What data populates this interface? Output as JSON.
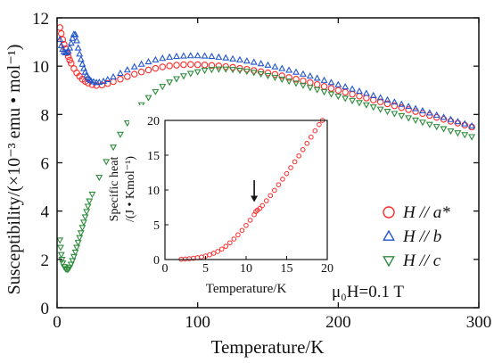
{
  "chart_data": [
    {
      "type": "scatter",
      "xlabel": "Temperature/K",
      "ylabel": "Susceptibility/(×10⁻³ emu • mol⁻¹)",
      "xlim": [
        0,
        300
      ],
      "ylim": [
        0,
        12
      ],
      "xticks": [
        "0",
        "100",
        "200",
        "300"
      ],
      "yticks": [
        "0",
        "2",
        "4",
        "6",
        "8",
        "10",
        "12"
      ],
      "legend_position": "right",
      "annotation": "μ₀H=0.1 T",
      "series": [
        {
          "name": "H // a*",
          "marker": "circle",
          "color": "#ff2a2a",
          "points": [
            [
              2,
              11.6
            ],
            [
              3,
              11.35
            ],
            [
              4,
              11.1
            ],
            [
              5,
              10.9
            ],
            [
              6,
              10.72
            ],
            [
              7,
              10.55
            ],
            [
              8,
              10.4
            ],
            [
              9,
              10.25
            ],
            [
              10,
              10.12
            ],
            [
              12,
              9.9
            ],
            [
              14,
              9.72
            ],
            [
              16,
              9.58
            ],
            [
              18,
              9.46
            ],
            [
              20,
              9.37
            ],
            [
              22,
              9.3
            ],
            [
              25,
              9.23
            ],
            [
              28,
              9.2
            ],
            [
              32,
              9.22
            ],
            [
              36,
              9.28
            ],
            [
              40,
              9.36
            ],
            [
              45,
              9.46
            ],
            [
              50,
              9.57
            ],
            [
              55,
              9.67
            ],
            [
              60,
              9.76
            ],
            [
              65,
              9.84
            ],
            [
              70,
              9.91
            ],
            [
              75,
              9.97
            ],
            [
              80,
              10.01
            ],
            [
              85,
              10.04
            ],
            [
              90,
              10.06
            ],
            [
              95,
              10.07
            ],
            [
              100,
              10.06
            ],
            [
              105,
              10.05
            ],
            [
              110,
              10.03
            ],
            [
              115,
              10.01
            ],
            [
              120,
              9.98
            ],
            [
              125,
              9.95
            ],
            [
              130,
              9.91
            ],
            [
              135,
              9.87
            ],
            [
              140,
              9.82
            ],
            [
              145,
              9.77
            ],
            [
              150,
              9.72
            ],
            [
              155,
              9.66
            ],
            [
              160,
              9.6
            ],
            [
              165,
              9.53
            ],
            [
              170,
              9.46
            ],
            [
              175,
              9.39
            ],
            [
              180,
              9.32
            ],
            [
              185,
              9.24
            ],
            [
              190,
              9.16
            ],
            [
              195,
              9.08
            ],
            [
              200,
              9.0
            ],
            [
              205,
              8.92
            ],
            [
              210,
              8.84
            ],
            [
              215,
              8.76
            ],
            [
              220,
              8.68
            ],
            [
              225,
              8.6
            ],
            [
              230,
              8.52
            ],
            [
              235,
              8.44
            ],
            [
              240,
              8.36
            ],
            [
              245,
              8.28
            ],
            [
              250,
              8.2
            ],
            [
              255,
              8.12
            ],
            [
              260,
              8.04
            ],
            [
              265,
              7.96
            ],
            [
              270,
              7.88
            ],
            [
              275,
              7.8
            ],
            [
              280,
              7.72
            ],
            [
              285,
              7.64
            ],
            [
              290,
              7.56
            ],
            [
              295,
              7.48
            ]
          ]
        },
        {
          "name": "H // b",
          "marker": "triangle-up",
          "color": "#2255cc",
          "points": [
            [
              2,
              11.1
            ],
            [
              3,
              10.85
            ],
            [
              4,
              10.7
            ],
            [
              5,
              10.6
            ],
            [
              6,
              10.55
            ],
            [
              7,
              10.55
            ],
            [
              8,
              10.62
            ],
            [
              9,
              10.75
            ],
            [
              10,
              10.95
            ],
            [
              11,
              11.15
            ],
            [
              12,
              11.32
            ],
            [
              13,
              11.3
            ],
            [
              14,
              11.05
            ],
            [
              15,
              10.75
            ],
            [
              16,
              10.5
            ],
            [
              17,
              10.28
            ],
            [
              18,
              10.08
            ],
            [
              19,
              9.9
            ],
            [
              20,
              9.75
            ],
            [
              21,
              9.62
            ],
            [
              22,
              9.52
            ],
            [
              23,
              9.45
            ],
            [
              24,
              9.4
            ],
            [
              26,
              9.35
            ],
            [
              28,
              9.32
            ],
            [
              30,
              9.33
            ],
            [
              33,
              9.37
            ],
            [
              36,
              9.44
            ],
            [
              40,
              9.55
            ],
            [
              45,
              9.7
            ],
            [
              50,
              9.84
            ],
            [
              55,
              9.97
            ],
            [
              60,
              10.08
            ],
            [
              65,
              10.18
            ],
            [
              70,
              10.26
            ],
            [
              75,
              10.32
            ],
            [
              80,
              10.37
            ],
            [
              85,
              10.4
            ],
            [
              90,
              10.42
            ],
            [
              95,
              10.43
            ],
            [
              100,
              10.43
            ],
            [
              105,
              10.42
            ],
            [
              110,
              10.4
            ],
            [
              115,
              10.37
            ],
            [
              120,
              10.34
            ],
            [
              125,
              10.3
            ],
            [
              130,
              10.26
            ],
            [
              135,
              10.21
            ],
            [
              140,
              10.16
            ],
            [
              145,
              10.1
            ],
            [
              150,
              10.04
            ],
            [
              155,
              9.97
            ],
            [
              160,
              9.9
            ],
            [
              165,
              9.83
            ],
            [
              170,
              9.75
            ],
            [
              175,
              9.67
            ],
            [
              180,
              9.59
            ],
            [
              185,
              9.5
            ],
            [
              190,
              9.41
            ],
            [
              195,
              9.32
            ],
            [
              200,
              9.23
            ],
            [
              205,
              9.14
            ],
            [
              210,
              9.05
            ],
            [
              215,
              8.96
            ],
            [
              220,
              8.87
            ],
            [
              225,
              8.78
            ],
            [
              230,
              8.69
            ],
            [
              235,
              8.6
            ],
            [
              240,
              8.51
            ],
            [
              245,
              8.42
            ],
            [
              250,
              8.33
            ],
            [
              255,
              8.24
            ],
            [
              260,
              8.15
            ],
            [
              265,
              8.06
            ],
            [
              270,
              7.97
            ],
            [
              275,
              7.88
            ],
            [
              280,
              7.79
            ],
            [
              285,
              7.7
            ],
            [
              290,
              7.61
            ],
            [
              295,
              7.52
            ]
          ]
        },
        {
          "name": "H // c",
          "marker": "triangle-down",
          "color": "#2e8b3c",
          "points": [
            [
              2,
              2.8
            ],
            [
              2.5,
              2.5
            ],
            [
              3,
              2.2
            ],
            [
              3.5,
              2.0
            ],
            [
              4,
              1.85
            ],
            [
              5,
              1.7
            ],
            [
              6,
              1.62
            ],
            [
              7,
              1.58
            ],
            [
              8,
              1.6
            ],
            [
              9,
              1.68
            ],
            [
              10,
              1.8
            ],
            [
              11,
              1.95
            ],
            [
              12,
              2.12
            ],
            [
              13,
              2.3
            ],
            [
              14,
              2.5
            ],
            [
              15,
              2.7
            ],
            [
              16,
              2.9
            ],
            [
              17,
              3.1
            ],
            [
              18,
              3.32
            ],
            [
              19,
              3.54
            ],
            [
              20,
              3.76
            ],
            [
              21,
              3.98
            ],
            [
              22,
              4.2
            ],
            [
              23,
              4.42
            ],
            [
              25,
              4.7
            ],
            [
              30,
              5.4
            ],
            [
              35,
              6.05
            ],
            [
              40,
              6.65
            ],
            [
              45,
              7.18
            ],
            [
              50,
              7.65
            ],
            [
              55,
              8.05
            ],
            [
              60,
              8.4
            ],
            [
              65,
              8.7
            ],
            [
              70,
              8.95
            ],
            [
              75,
              9.16
            ],
            [
              80,
              9.34
            ],
            [
              85,
              9.48
            ],
            [
              90,
              9.6
            ],
            [
              95,
              9.7
            ],
            [
              100,
              9.77
            ],
            [
              105,
              9.83
            ],
            [
              110,
              9.86
            ],
            [
              115,
              9.88
            ],
            [
              120,
              9.88
            ],
            [
              125,
              9.86
            ],
            [
              130,
              9.83
            ],
            [
              135,
              9.79
            ],
            [
              140,
              9.74
            ],
            [
              145,
              9.68
            ],
            [
              150,
              9.61
            ],
            [
              155,
              9.54
            ],
            [
              160,
              9.46
            ],
            [
              165,
              9.38
            ],
            [
              170,
              9.3
            ],
            [
              175,
              9.21
            ],
            [
              180,
              9.12
            ],
            [
              185,
              9.03
            ],
            [
              190,
              8.94
            ],
            [
              195,
              8.85
            ],
            [
              200,
              8.76
            ],
            [
              205,
              8.67
            ],
            [
              210,
              8.58
            ],
            [
              215,
              8.49
            ],
            [
              220,
              8.4
            ],
            [
              225,
              8.31
            ],
            [
              230,
              8.22
            ],
            [
              235,
              8.13
            ],
            [
              240,
              8.04
            ],
            [
              245,
              7.95
            ],
            [
              250,
              7.86
            ],
            [
              255,
              7.77
            ],
            [
              260,
              7.68
            ],
            [
              265,
              7.59
            ],
            [
              270,
              7.5
            ],
            [
              275,
              7.41
            ],
            [
              280,
              7.32
            ],
            [
              285,
              7.24
            ],
            [
              290,
              7.16
            ],
            [
              295,
              7.08
            ]
          ]
        }
      ]
    },
    {
      "type": "scatter",
      "xlabel": "Temperature/K",
      "ylabel": "Specific heat /(J • Kmol⁻¹)",
      "ylabel_lines": [
        "Specific heat",
        "/(J • Kmol⁻¹)"
      ],
      "xlim": [
        0,
        20
      ],
      "ylim": [
        0,
        20
      ],
      "xticks": [
        "0",
        "5",
        "10",
        "15",
        "20"
      ],
      "yticks": [
        "0",
        "5",
        "10",
        "15",
        "20"
      ],
      "annotation_arrow_x": 11,
      "series": [
        {
          "marker": "circle",
          "color": "#ff2a2a",
          "points": [
            [
              2,
              0.05
            ],
            [
              2.5,
              0.08
            ],
            [
              3,
              0.12
            ],
            [
              3.5,
              0.18
            ],
            [
              4,
              0.26
            ],
            [
              4.5,
              0.36
            ],
            [
              5,
              0.5
            ],
            [
              5.5,
              0.68
            ],
            [
              6,
              0.9
            ],
            [
              6.5,
              1.16
            ],
            [
              7,
              1.5
            ],
            [
              7.5,
              1.9
            ],
            [
              8,
              2.4
            ],
            [
              8.5,
              2.95
            ],
            [
              9,
              3.55
            ],
            [
              9.5,
              4.2
            ],
            [
              10,
              4.9
            ],
            [
              10.5,
              5.65
            ],
            [
              11,
              6.45
            ],
            [
              11.2,
              6.9
            ],
            [
              11.4,
              7.1
            ],
            [
              11.7,
              7.35
            ],
            [
              12,
              7.75
            ],
            [
              12.5,
              8.45
            ],
            [
              13,
              9.2
            ],
            [
              13.5,
              9.95
            ],
            [
              14,
              10.75
            ],
            [
              14.5,
              11.55
            ],
            [
              15,
              12.35
            ],
            [
              15.5,
              13.2
            ],
            [
              16,
              14.05
            ],
            [
              16.5,
              14.9
            ],
            [
              17,
              15.8
            ],
            [
              17.5,
              16.7
            ],
            [
              18,
              17.6
            ],
            [
              18.5,
              18.5
            ],
            [
              19,
              19.4
            ],
            [
              19.4,
              20.0
            ]
          ]
        }
      ]
    }
  ]
}
